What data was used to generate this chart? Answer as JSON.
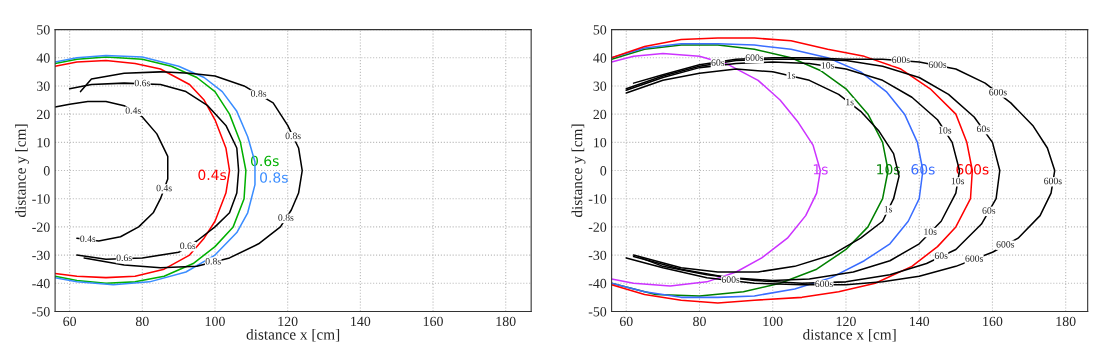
{
  "chart_data": [
    {
      "type": "line",
      "xlabel": "distance x [cm]",
      "ylabel": "distance y [cm]",
      "xlim": [
        56,
        187
      ],
      "ylim": [
        -50,
        50
      ],
      "xticks": [
        60,
        80,
        100,
        120,
        140,
        160,
        180
      ],
      "yticks": [
        -50,
        -40,
        -30,
        -20,
        -10,
        0,
        10,
        20,
        30,
        40,
        50
      ],
      "grid": true,
      "line_style": "solid",
      "marker": "none",
      "series": [
        {
          "name": "0.4s",
          "color": "#ff0000",
          "x": [
            56,
            62,
            70,
            78,
            85,
            93,
            97,
            100,
            103,
            104,
            103,
            100,
            97,
            93,
            86,
            78,
            70,
            62,
            56
          ],
          "values": [
            37,
            38.5,
            39,
            38,
            36,
            30.5,
            25,
            18,
            8,
            0,
            -8,
            -18,
            -24,
            -30,
            -35,
            -37.5,
            -38,
            -37.5,
            -36.5
          ]
        },
        {
          "name": "0.6s",
          "color": "#00b000",
          "x": [
            56,
            62,
            70,
            80,
            88,
            95,
            100,
            104,
            107,
            108.5,
            108,
            105,
            100,
            94,
            86,
            78,
            70,
            62,
            56
          ],
          "values": [
            38,
            39.5,
            40.3,
            39.5,
            37,
            33,
            28,
            20,
            10,
            0,
            -10,
            -20,
            -27,
            -33,
            -37.5,
            -39.5,
            -40,
            -39,
            -37.5
          ]
        },
        {
          "name": "0.8s",
          "color": "#3a8dff",
          "x": [
            56,
            62,
            70,
            80,
            90,
            97,
            102,
            106,
            109,
            111,
            111,
            109,
            106,
            100,
            92,
            82,
            72,
            62,
            56
          ],
          "values": [
            38.5,
            40,
            40.8,
            40.3,
            37,
            33,
            28,
            21,
            12,
            3,
            -5,
            -15,
            -22,
            -30,
            -36,
            -39.5,
            -40.5,
            -39.5,
            -38
          ]
        },
        {
          "color": "#000000",
          "x": [
            56,
            60,
            65,
            70,
            75,
            80,
            84,
            87,
            87,
            85,
            83,
            79,
            74,
            68,
            62
          ],
          "values": [
            22.5,
            23.5,
            24.5,
            24.5,
            23,
            19,
            13,
            5,
            -3,
            -10,
            -15,
            -20,
            -23.5,
            -25,
            -24
          ]
        },
        {
          "color": "#000000",
          "x": [
            60,
            66,
            75,
            85,
            92,
            98,
            103,
            106,
            106.5,
            106,
            104,
            100,
            95,
            90,
            80,
            70,
            62
          ],
          "values": [
            29,
            30.5,
            31,
            30.5,
            28,
            23,
            16,
            8,
            0,
            -8,
            -15,
            -20,
            -25,
            -29,
            -31,
            -31.5,
            -30
          ]
        },
        {
          "color": "#000000",
          "x": [
            63,
            66,
            75,
            85,
            93,
            100,
            108,
            116,
            120,
            123,
            124,
            123,
            121,
            118,
            112,
            104,
            95,
            85,
            75,
            64
          ],
          "values": [
            28,
            32.5,
            34.5,
            35,
            34.5,
            33.5,
            30,
            24,
            16,
            8,
            0,
            -8,
            -14,
            -20,
            -26,
            -31,
            -34,
            -34.5,
            -33.5,
            -31
          ]
        }
      ],
      "annotations": [
        {
          "text": "0.8s",
          "x": 112,
          "y": 27
        },
        {
          "text": "0.6s",
          "x": 80,
          "y": 30.75
        },
        {
          "text": "0.4s",
          "x": 77.5,
          "y": 21
        },
        {
          "text": "0.8s",
          "x": 121.5,
          "y": 12
        },
        {
          "text": "0.4s",
          "x": 86,
          "y": -6.5
        },
        {
          "text": "0.6s",
          "x": 92.5,
          "y": -27
        },
        {
          "text": "0.8s",
          "x": 119.5,
          "y": -17
        },
        {
          "text": "0.4s",
          "x": 65,
          "y": -24.5
        },
        {
          "text": "0.6s",
          "x": 75,
          "y": -31.25
        },
        {
          "text": "0.8s",
          "x": 99.5,
          "y": -32.5
        }
      ]
    },
    {
      "type": "line",
      "xlabel": "distance x [cm]",
      "ylabel": "distance y [cm]",
      "xlim": [
        56,
        186
      ],
      "ylim": [
        -50,
        50
      ],
      "xticks": [
        60,
        80,
        100,
        120,
        140,
        160,
        180
      ],
      "yticks": [
        -50,
        -40,
        -30,
        -20,
        -10,
        0,
        10,
        20,
        30,
        40,
        50
      ],
      "grid": true,
      "line_style": "solid",
      "marker": "none",
      "series": [
        {
          "name": "1s",
          "color": "#cc33ff",
          "x": [
            56,
            62,
            70,
            80,
            88,
            96,
            102,
            107,
            111,
            113,
            112,
            109,
            104,
            97,
            90,
            82,
            72,
            62,
            56
          ],
          "values": [
            38.5,
            40.5,
            41.5,
            40.5,
            37.5,
            32,
            25,
            17,
            9,
            0,
            -8,
            -16,
            -24,
            -31,
            -36,
            -39.5,
            -41,
            -40,
            -38.5
          ]
        },
        {
          "name": "10s",
          "color": "#008000",
          "x": [
            56,
            65,
            75,
            85,
            95,
            105,
            113,
            120,
            126,
            130,
            131.5,
            130,
            126,
            120,
            112,
            102,
            92,
            80,
            68,
            56
          ],
          "values": [
            39.5,
            43,
            44.5,
            44.5,
            43,
            40,
            35.5,
            29,
            20,
            10,
            0,
            -10,
            -20,
            -28,
            -35,
            -40,
            -43,
            -44.5,
            -44,
            -40
          ]
        },
        {
          "name": "60s",
          "color": "#3a6dff",
          "x": [
            56,
            65,
            75,
            85,
            95,
            105,
            115,
            124,
            131,
            136,
            139.5,
            141,
            140,
            137,
            132,
            125,
            116,
            106,
            95,
            85,
            75,
            65,
            56
          ],
          "values": [
            40,
            43.5,
            45,
            45,
            44.5,
            43,
            40,
            35,
            28,
            20,
            10,
            0,
            -10,
            -18,
            -26,
            -32,
            -38,
            -42,
            -44.5,
            -45,
            -45,
            -43,
            -40
          ]
        },
        {
          "name": "600s",
          "color": "#ff0000",
          "x": [
            56,
            65,
            75,
            85,
            95,
            105,
            115,
            125,
            135,
            143,
            150,
            153,
            154.5,
            154,
            150,
            145,
            138,
            128,
            118,
            108,
            95,
            85,
            75,
            65,
            56
          ],
          "values": [
            40,
            44,
            46.5,
            47,
            47,
            46,
            43,
            40.5,
            36,
            29,
            20,
            10,
            0,
            -10,
            -20,
            -27,
            -34,
            -40,
            -43,
            -45,
            -46,
            -47,
            -46,
            -44,
            -40.5
          ]
        },
        {
          "color": "#000000",
          "x": [
            60,
            70,
            80,
            90,
            100,
            110,
            118,
            124,
            129,
            133,
            134.5,
            133,
            130,
            124,
            116,
            106,
            96,
            85,
            75,
            62
          ],
          "values": [
            27.5,
            32,
            34.5,
            36,
            35,
            32,
            27,
            21,
            14,
            6,
            -2,
            -10,
            -18,
            -24,
            -30,
            -34,
            -36,
            -36,
            -34.5,
            -30
          ]
        },
        {
          "color": "#000000",
          "x": [
            60,
            70,
            80,
            90,
            100,
            110,
            120,
            130,
            138,
            145,
            149,
            151,
            150,
            146,
            140,
            132,
            122,
            110,
            100,
            88,
            75,
            62
          ],
          "values": [
            28.5,
            33,
            36.5,
            38,
            38.5,
            38,
            36,
            32,
            26,
            18,
            10,
            0,
            -8,
            -18,
            -26,
            -32,
            -36,
            -38.5,
            -39,
            -38,
            -35,
            -30.5
          ]
        },
        {
          "color": "#000000",
          "x": [
            60,
            70,
            80,
            90,
            100,
            110,
            120,
            130,
            140,
            148,
            155,
            160,
            162,
            161,
            157,
            150,
            142,
            132,
            120,
            108,
            95,
            82,
            70,
            64
          ],
          "values": [
            29,
            33.5,
            37,
            39,
            39.5,
            39.5,
            39,
            37,
            33,
            27,
            19,
            10,
            0,
            -10,
            -19,
            -28,
            -33,
            -37,
            -39.5,
            -40,
            -39,
            -37,
            -34,
            -31
          ]
        },
        {
          "color": "#000000",
          "x": [
            62,
            70,
            80,
            90,
            100,
            110,
            120,
            130,
            140,
            150,
            158,
            165,
            171,
            175,
            177,
            176,
            173,
            167,
            160,
            150,
            140,
            130,
            120,
            108,
            95,
            82,
            70,
            60
          ],
          "values": [
            31,
            34,
            37.5,
            39.5,
            40,
            40,
            39.5,
            39.5,
            38.5,
            36,
            31,
            24,
            16,
            8,
            0,
            -8,
            -16,
            -24,
            -29,
            -34,
            -37.5,
            -39.5,
            -40.5,
            -40.5,
            -40,
            -38,
            -34.5,
            -31
          ]
        }
      ],
      "annotations": [
        {
          "text": "60s",
          "x": 85,
          "y": 38
        },
        {
          "text": "600s",
          "x": 95,
          "y": 39.75
        },
        {
          "text": "1s",
          "x": 105,
          "y": 33.5
        },
        {
          "text": "10s",
          "x": 115,
          "y": 37
        },
        {
          "text": "600s",
          "x": 135,
          "y": 39
        },
        {
          "text": "600s",
          "x": 145,
          "y": 37.25
        },
        {
          "text": "1s",
          "x": 121,
          "y": 24
        },
        {
          "text": "600s",
          "x": 161.5,
          "y": 27.5
        },
        {
          "text": "10s",
          "x": 147,
          "y": 14
        },
        {
          "text": "60s",
          "x": 157.5,
          "y": 14.5
        },
        {
          "text": "600s",
          "x": 176.5,
          "y": -4
        },
        {
          "text": "10s",
          "x": 150.5,
          "y": -4
        },
        {
          "text": "60s",
          "x": 159,
          "y": -14.5
        },
        {
          "text": "1s",
          "x": 131.5,
          "y": -14
        },
        {
          "text": "10s",
          "x": 143,
          "y": -22
        },
        {
          "text": "600s",
          "x": 163.5,
          "y": -26.5
        },
        {
          "text": "60s",
          "x": 146,
          "y": -30.5
        },
        {
          "text": "600s",
          "x": 155,
          "y": -31.5
        },
        {
          "text": "600s",
          "x": 114,
          "y": -40.5
        },
        {
          "text": "600s",
          "x": 88.5,
          "y": -39
        }
      ]
    }
  ]
}
